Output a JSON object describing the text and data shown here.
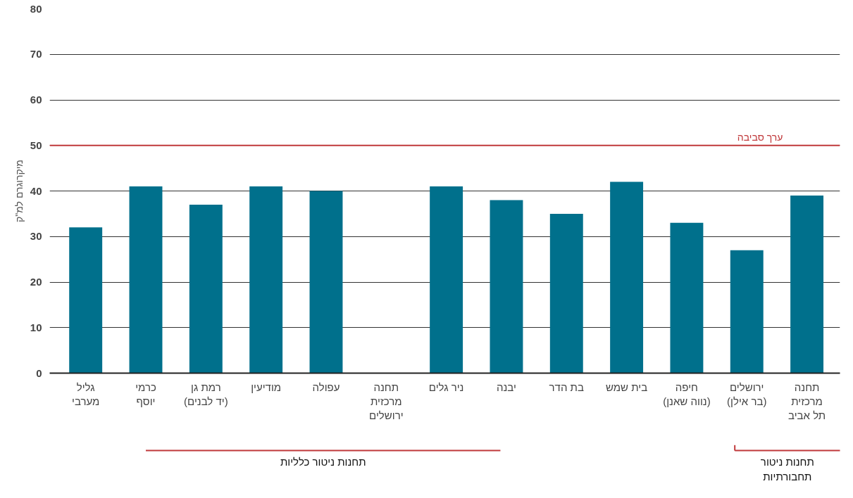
{
  "chart_data": {
    "type": "bar",
    "ylabel": "מיקרוגרם למ\"ק",
    "categories": [
      "גליל\nמערבי",
      "כרמי\nיוסף",
      "רמת גן\n(יד לבנים)",
      "מודיעין",
      "עפולה",
      "תחנה\nמרכזית\nירושלים",
      "ניר גלים",
      "יבנה",
      "בת הדר",
      "בית שמש",
      "חיפה\n(נווה שאנן)",
      "ירושלים\n(בר אילן)",
      "תחנה\nמרכזית\nתל אביב"
    ],
    "values": [
      32,
      41,
      37,
      41,
      40,
      null,
      41,
      38,
      35,
      42,
      33,
      27,
      39
    ],
    "color": "#00708c",
    "ylim": [
      0,
      80
    ],
    "yticks": [
      0,
      10,
      20,
      30,
      40,
      50,
      60,
      70,
      80
    ],
    "grid": "y",
    "ref_lines": [
      {
        "axis": "y",
        "value": 50,
        "label": "ערך סביבה",
        "color": "#c0393b"
      }
    ],
    "annotations": [
      "תחנות ניטור כלליות",
      "תחנות ניטור\nתחבורתיות"
    ]
  }
}
